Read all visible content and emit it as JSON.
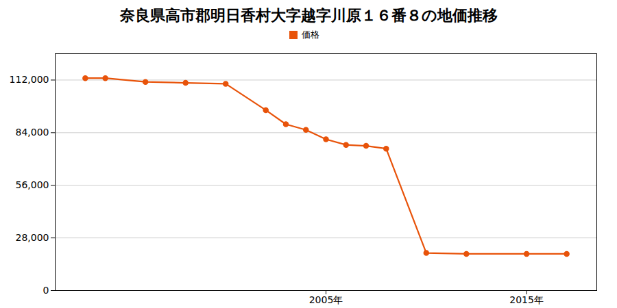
{
  "chart_data": {
    "type": "line",
    "title": "奈良県高市郡明日香村大字越字川原１６番８の地価推移",
    "x": [
      1993,
      1994,
      1996,
      1998,
      2000,
      2002,
      2003,
      2004,
      2005,
      2006,
      2007,
      2008,
      2010,
      2012,
      2015,
      2017
    ],
    "series": [
      {
        "name": "価格",
        "color": "#e8530a",
        "marker": "circle",
        "values": [
          113000,
          113000,
          111000,
          110500,
          110000,
          96000,
          88500,
          85500,
          80500,
          77500,
          77000,
          75500,
          20000,
          19500,
          19500,
          19500
        ]
      }
    ],
    "xlim": [
      1991.5,
      2018.5
    ],
    "xticks": [
      {
        "value": 2005,
        "label": "2005年"
      },
      {
        "value": 2015,
        "label": "2015年"
      }
    ],
    "ylim": [
      0,
      126000
    ],
    "yticks": [
      0,
      {
        "value": 28000,
        "label": "28,000"
      },
      {
        "value": 56000,
        "label": "56,000"
      },
      {
        "value": 84000,
        "label": "84,000"
      },
      {
        "value": 112000,
        "label": "112,000"
      }
    ],
    "grid": "y",
    "legend": "top"
  }
}
